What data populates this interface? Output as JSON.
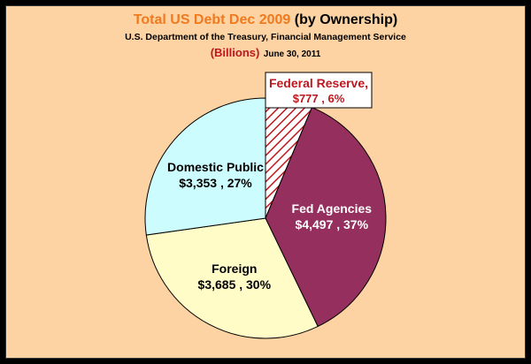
{
  "header": {
    "title_main": "Total US Debt Dec 2009 ",
    "title_paren": "(by Ownership)",
    "subtitle": "U.S. Department of the Treasury, Financial Management Service",
    "units": "(Billions)",
    "date": "June 30, 2011"
  },
  "chart_data": {
    "type": "pie",
    "slices": [
      {
        "label": "Federal Reserve,",
        "value_label": "$777 , 6%",
        "value": 777,
        "percent": 6,
        "color": "#c0161e",
        "pattern": "hatched"
      },
      {
        "label": "Fed Agencies",
        "value_label": "$4,497 , 37%",
        "value": 4497,
        "percent": 37,
        "color": "#952f5e"
      },
      {
        "label": "Foreign",
        "value_label": "$3,685 , 30%",
        "value": 3685,
        "percent": 30,
        "color": "#fffcc8"
      },
      {
        "label": "Domestic Public",
        "value_label": "$3,353 , 27%",
        "value": 3353,
        "percent": 27,
        "color": "#ccfcfe"
      }
    ]
  }
}
